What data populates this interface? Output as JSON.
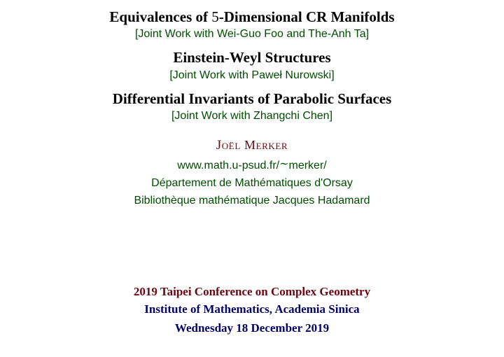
{
  "talks": [
    {
      "title_pre": "Equivalences of ",
      "title_num": "5",
      "title_post": "-Dimensional CR Manifolds",
      "joint": "[Joint Work with Wei-Guo Foo and The-Anh Ta]"
    },
    {
      "title": "Einstein-Weyl Structures",
      "joint": "[Joint Work with Paweł Nurowski]"
    },
    {
      "title": "Differential Invariants of Parabolic Surfaces",
      "joint": "[Joint Work with Zhangchi Chen]"
    }
  ],
  "author": {
    "name_pre": "J",
    "name_rest": "oël Merker",
    "url_pre": "www.math.u-psud.fr/",
    "url_tilde": "∼",
    "url_post": "merker/",
    "dept": "Département de Mathématiques d'Orsay",
    "library": "Bibliothèque mathématique Jacques Hadamard"
  },
  "footer": {
    "conference": "2019 Taipei Conference on Complex Geometry",
    "venue": "Institute of Mathematics, Academia Sinica",
    "date": "Wednesday 18 December 2019"
  },
  "colors": {
    "title": "#000000",
    "green": "#004d00",
    "maroon": "#6b0612",
    "navy": "#00006b",
    "bg": "#ffffff"
  }
}
